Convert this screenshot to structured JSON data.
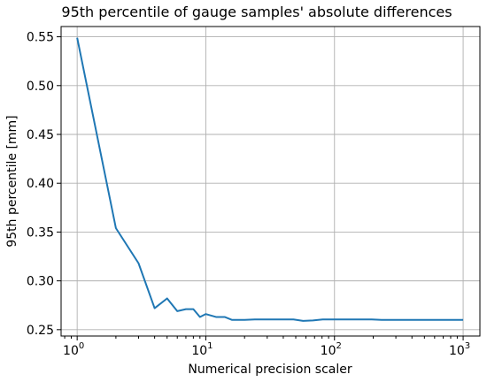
{
  "chart_data": {
    "type": "line",
    "title": "95th percentile of gauge samples' absolute differences",
    "xlabel": "Numerical precision scaler",
    "ylabel": "95th percentile [mm]",
    "xscale": "log",
    "xlim": [
      0.75,
      1350
    ],
    "ylim": [
      0.2435,
      0.5605
    ],
    "grid": true,
    "x_ticks": [
      {
        "value": 1,
        "base": "10",
        "exp": "0"
      },
      {
        "value": 10,
        "base": "10",
        "exp": "1"
      },
      {
        "value": 100,
        "base": "10",
        "exp": "2"
      },
      {
        "value": 1000,
        "base": "10",
        "exp": "3"
      }
    ],
    "y_ticks": [
      "0.25",
      "0.30",
      "0.35",
      "0.40",
      "0.45",
      "0.50",
      "0.55"
    ],
    "series": [
      {
        "color": "#1f77b4",
        "x": [
          1,
          2,
          3,
          4,
          5,
          6,
          7,
          8,
          9,
          10,
          12,
          14,
          16,
          20,
          24,
          28,
          33,
          40,
          48,
          57,
          68,
          81,
          97,
          115,
          137,
          163,
          195,
          232,
          276,
          329,
          392,
          466,
          556,
          662,
          788,
          1000
        ],
        "y": [
          0.549,
          0.354,
          0.318,
          0.272,
          0.282,
          0.269,
          0.271,
          0.271,
          0.263,
          0.266,
          0.263,
          0.263,
          0.26,
          0.26,
          0.2605,
          0.2605,
          0.2605,
          0.2605,
          0.2605,
          0.259,
          0.2595,
          0.2605,
          0.2605,
          0.2605,
          0.2605,
          0.2605,
          0.2605,
          0.26,
          0.26,
          0.26,
          0.26,
          0.26,
          0.26,
          0.26,
          0.26,
          0.26
        ]
      }
    ]
  }
}
